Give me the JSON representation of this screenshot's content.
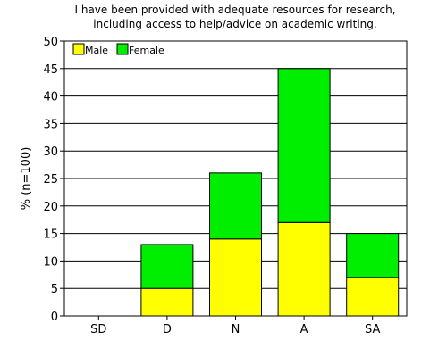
{
  "chart_data": {
    "type": "bar",
    "stacked": true,
    "title_lines": [
      "I have been provided with adequate resources for research,",
      "including access to help/advice on academic writing."
    ],
    "xlabel": "",
    "ylabel": "% (n=100)",
    "ylim": [
      0,
      50
    ],
    "yticks": [
      0,
      5,
      10,
      15,
      20,
      25,
      30,
      35,
      40,
      45,
      50
    ],
    "grid": true,
    "legend_position": "top-left",
    "categories": [
      "SD",
      "D",
      "N",
      "A",
      "SA"
    ],
    "series": [
      {
        "name": "Male",
        "color": "#ffff00",
        "values": [
          0,
          5,
          14,
          17,
          7
        ]
      },
      {
        "name": "Female",
        "color": "#00ee00",
        "values": [
          0,
          8,
          12,
          28,
          8
        ]
      }
    ]
  }
}
